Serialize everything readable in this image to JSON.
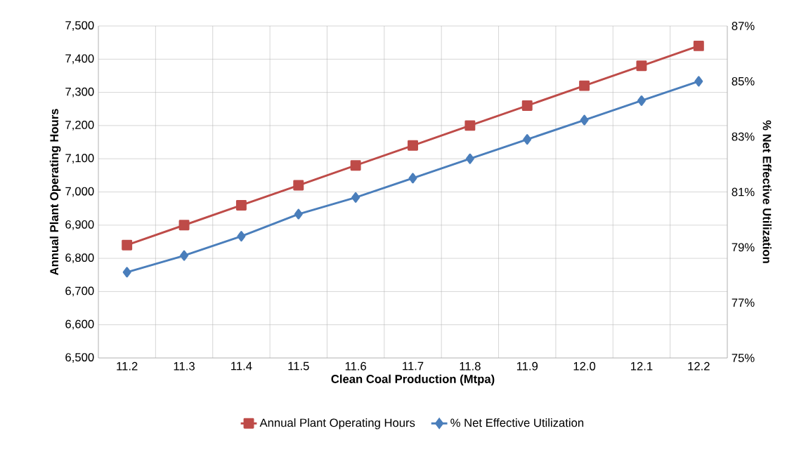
{
  "chart_data": {
    "type": "line",
    "xlabel": "Clean Coal Production (Mtpa)",
    "ylabel": "Annual Plant Operating Hours",
    "y2label": "% Net Effective Utilization",
    "categories": [
      "11.2",
      "11.3",
      "11.4",
      "11.5",
      "11.6",
      "11.7",
      "11.8",
      "11.9",
      "12.0",
      "12.1",
      "12.2"
    ],
    "series": [
      {
        "name": "Annual Plant Operating Hours",
        "color": "#be4b48",
        "marker": "square",
        "values": [
          6840,
          6900,
          6960,
          7020,
          7080,
          7140,
          7200,
          7260,
          7320,
          7380,
          7440
        ]
      },
      {
        "name": "% Net Effective Utilization",
        "color": "#4a7ebb",
        "marker": "diamond",
        "axis": "y2",
        "values": [
          78.1,
          78.7,
          79.4,
          80.2,
          80.8,
          81.5,
          82.2,
          82.9,
          83.6,
          84.3,
          85.0
        ]
      }
    ],
    "ylim": [
      6500,
      7500
    ],
    "yticks": [
      {
        "value": 6500,
        "label": "6,500"
      },
      {
        "value": 6600,
        "label": "6,600"
      },
      {
        "value": 6700,
        "label": "6,700"
      },
      {
        "value": 6800,
        "label": "6,800"
      },
      {
        "value": 6900,
        "label": "6,900"
      },
      {
        "value": 7000,
        "label": "7,000"
      },
      {
        "value": 7100,
        "label": "7,100"
      },
      {
        "value": 7200,
        "label": "7,200"
      },
      {
        "value": 7300,
        "label": "7,300"
      },
      {
        "value": 7400,
        "label": "7,400"
      },
      {
        "value": 7500,
        "label": "7,500"
      }
    ],
    "y2lim": [
      75,
      87
    ],
    "y2ticks": [
      {
        "value": 75,
        "label": "75%"
      },
      {
        "value": 77,
        "label": "77%"
      },
      {
        "value": 79,
        "label": "79%"
      },
      {
        "value": 81,
        "label": "81%"
      },
      {
        "value": 83,
        "label": "83%"
      },
      {
        "value": 85,
        "label": "85%"
      },
      {
        "value": 87,
        "label": "87%"
      }
    ],
    "grid": true,
    "legend": "bottom",
    "line_style": "solid"
  }
}
